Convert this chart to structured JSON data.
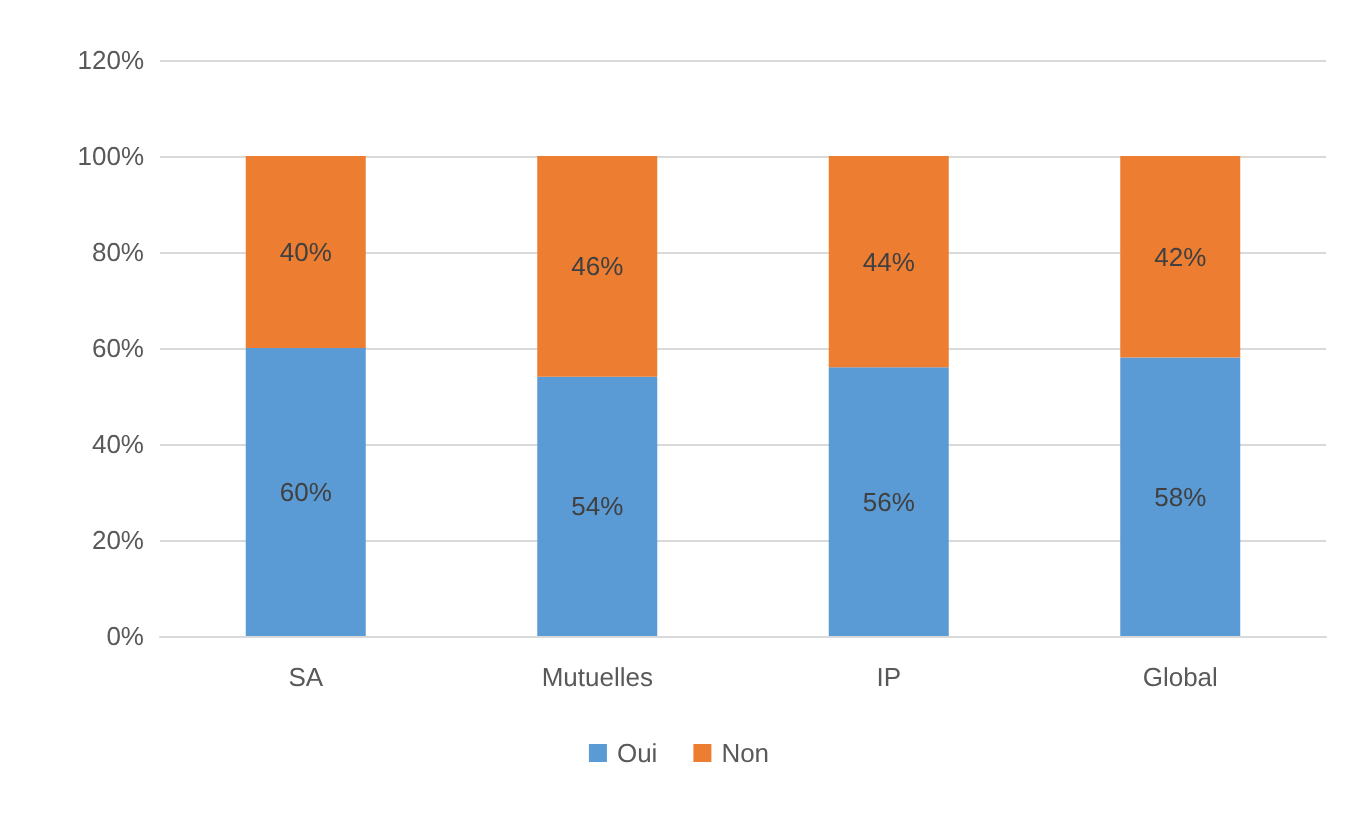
{
  "chart_data": {
    "type": "bar",
    "stacked": true,
    "categories": [
      "SA",
      "Mutuelles",
      "IP",
      "Global"
    ],
    "series": [
      {
        "name": "Oui",
        "color": "#5b9bd5",
        "values": [
          60,
          54,
          56,
          58
        ],
        "value_labels": [
          "60%",
          "54%",
          "56%",
          "58%"
        ]
      },
      {
        "name": "Non",
        "color": "#ed7d31",
        "values": [
          40,
          46,
          44,
          42
        ],
        "value_labels": [
          "40%",
          "46%",
          "44%",
          "42%"
        ]
      }
    ],
    "ylim": [
      0,
      120
    ],
    "yticks": [
      {
        "value": 0,
        "label": "0%"
      },
      {
        "value": 20,
        "label": "20%"
      },
      {
        "value": 40,
        "label": "40%"
      },
      {
        "value": 60,
        "label": "60%"
      },
      {
        "value": 80,
        "label": "80%"
      },
      {
        "value": 100,
        "label": "100%"
      },
      {
        "value": 120,
        "label": "120%"
      }
    ],
    "grid": "y",
    "legend": "bottom"
  }
}
